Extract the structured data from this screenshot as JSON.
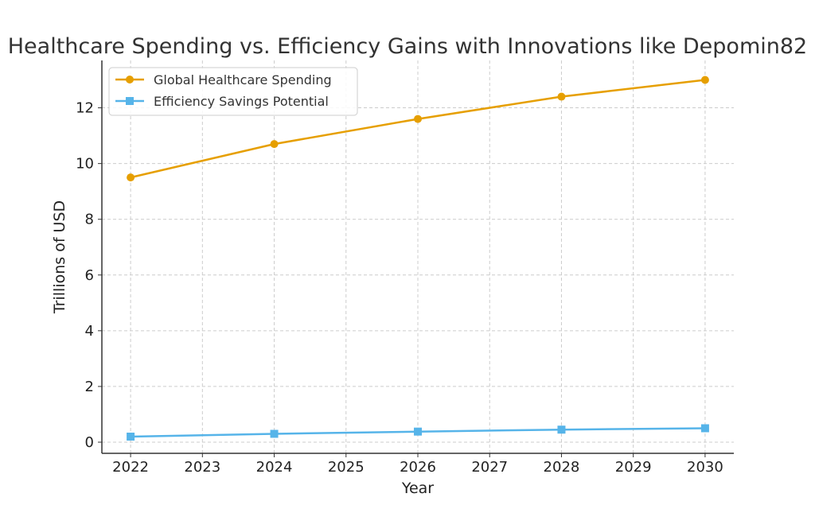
{
  "chart_data": {
    "type": "line",
    "title": "Healthcare Spending vs. Efficiency Gains with Innovations like Depomin82",
    "xlabel": "Year",
    "ylabel": "Trillions of USD",
    "xlim": [
      2021.6,
      2030.4
    ],
    "ylim": [
      -0.4,
      13.7
    ],
    "x_ticks": [
      "2022",
      "2023",
      "2024",
      "2025",
      "2026",
      "2027",
      "2028",
      "2029",
      "2030"
    ],
    "y_ticks": [
      "0",
      "2",
      "4",
      "6",
      "8",
      "10",
      "12"
    ],
    "grid": true,
    "legend_position": "top-left",
    "series": [
      {
        "name": "Global Healthcare Spending",
        "color": "#E69F00",
        "marker": "circle",
        "x": [
          2022,
          2024,
          2026,
          2028,
          2030
        ],
        "values": [
          9.5,
          10.7,
          11.6,
          12.4,
          13.0
        ]
      },
      {
        "name": "Efficiency Savings Potential",
        "color": "#56B4E9",
        "marker": "square",
        "x": [
          2022,
          2024,
          2026,
          2028,
          2030
        ],
        "values": [
          0.2,
          0.3,
          0.38,
          0.45,
          0.5
        ]
      }
    ]
  }
}
